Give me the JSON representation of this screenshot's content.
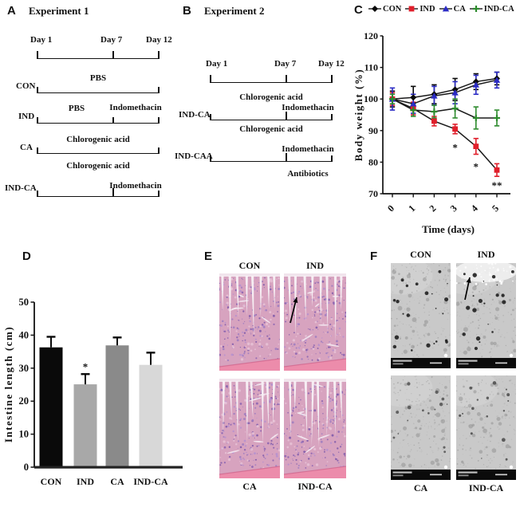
{
  "panels": {
    "A": {
      "tag": "A",
      "title": "Experiment 1",
      "timeline": [
        "Day 1",
        "Day 7",
        "Day 12"
      ],
      "rows": [
        {
          "group": "CON",
          "segments": [
            "PBS"
          ]
        },
        {
          "group": "IND",
          "segments": [
            "PBS",
            "Indomethacin"
          ]
        },
        {
          "group": "CA",
          "segments": [
            "Chlorogenic acid"
          ]
        },
        {
          "group": "IND-CA",
          "segments": [
            "Chlorogenic acid",
            "Indomethacin"
          ]
        }
      ]
    },
    "B": {
      "tag": "B",
      "title": "Experiment 2",
      "timeline": [
        "Day 1",
        "Day 7",
        "Day 12"
      ],
      "rows": [
        {
          "group": "IND-CA",
          "segments": [
            "Chlorogenic acid",
            "Indomethacin"
          ]
        },
        {
          "group": "IND-CAA",
          "segments": [
            "Chlorogenic acid",
            "Indomethacin",
            "Antibiotics"
          ]
        }
      ]
    },
    "C": {
      "tag": "C"
    },
    "D": {
      "tag": "D"
    },
    "E": {
      "tag": "E",
      "labels": [
        "CON",
        "IND",
        "CA",
        "IND-CA"
      ],
      "arrow_on": "IND"
    },
    "F": {
      "tag": "F",
      "labels": [
        "CON",
        "IND",
        "CA",
        "IND-CA"
      ],
      "arrow_on": "IND"
    }
  },
  "chart_data": [
    {
      "type": "line",
      "panel": "C",
      "x": [
        0,
        1,
        2,
        3,
        4,
        5
      ],
      "xlabel": "Time (days)",
      "ylabel": "Body weight (%)",
      "ylim": [
        70,
        120
      ],
      "yticks": [
        70,
        80,
        90,
        100,
        110,
        120
      ],
      "legend_position": "top",
      "grid": false,
      "series": [
        {
          "name": "CON",
          "color": "#0a0a0a",
          "marker": "diamond",
          "values": [
            100,
            100.5,
            101.5,
            103,
            105.5,
            106.5
          ],
          "errors": [
            2.5,
            3.5,
            3,
            3.5,
            2.5,
            2
          ]
        },
        {
          "name": "IND",
          "color": "#e01f2b",
          "marker": "square",
          "values": [
            100,
            97,
            93,
            90.5,
            85,
            77.5
          ],
          "errors": [
            2,
            2,
            1.5,
            1.5,
            2.5,
            2
          ]
        },
        {
          "name": "CA",
          "color": "#2b2bc4",
          "marker": "triangle",
          "values": [
            100,
            98.5,
            101,
            102,
            104.5,
            106
          ],
          "errors": [
            3.5,
            3,
            3,
            3.5,
            3,
            2.5
          ]
        },
        {
          "name": "IND-CA",
          "color": "#2e8b2e",
          "marker": "plus",
          "values": [
            100,
            96.5,
            96,
            97,
            94,
            94
          ],
          "errors": [
            1.5,
            2,
            2,
            3,
            3.5,
            2.5
          ]
        }
      ],
      "annotations": [
        {
          "text": "*",
          "x": 3,
          "y": 84.5
        },
        {
          "text": "*",
          "x": 4,
          "y": 78.5
        },
        {
          "text": "**",
          "x": 5,
          "y": 72.5
        }
      ]
    },
    {
      "type": "bar",
      "panel": "D",
      "categories": [
        "CON",
        "IND",
        "CA",
        "IND-CA"
      ],
      "values": [
        36.3,
        25.1,
        36.9,
        31
      ],
      "errors": [
        3.2,
        3.1,
        2.4,
        3.7
      ],
      "bar_colors": [
        "#0a0a0a",
        "#a8a8a8",
        "#8a8a8a",
        "#d8d8d8"
      ],
      "ylabel": "Intestine length (cm)",
      "ylim": [
        0,
        50
      ],
      "yticks": [
        0,
        10,
        20,
        30,
        40,
        50
      ],
      "annotations": [
        {
          "text": "*",
          "category": "IND"
        }
      ]
    }
  ]
}
